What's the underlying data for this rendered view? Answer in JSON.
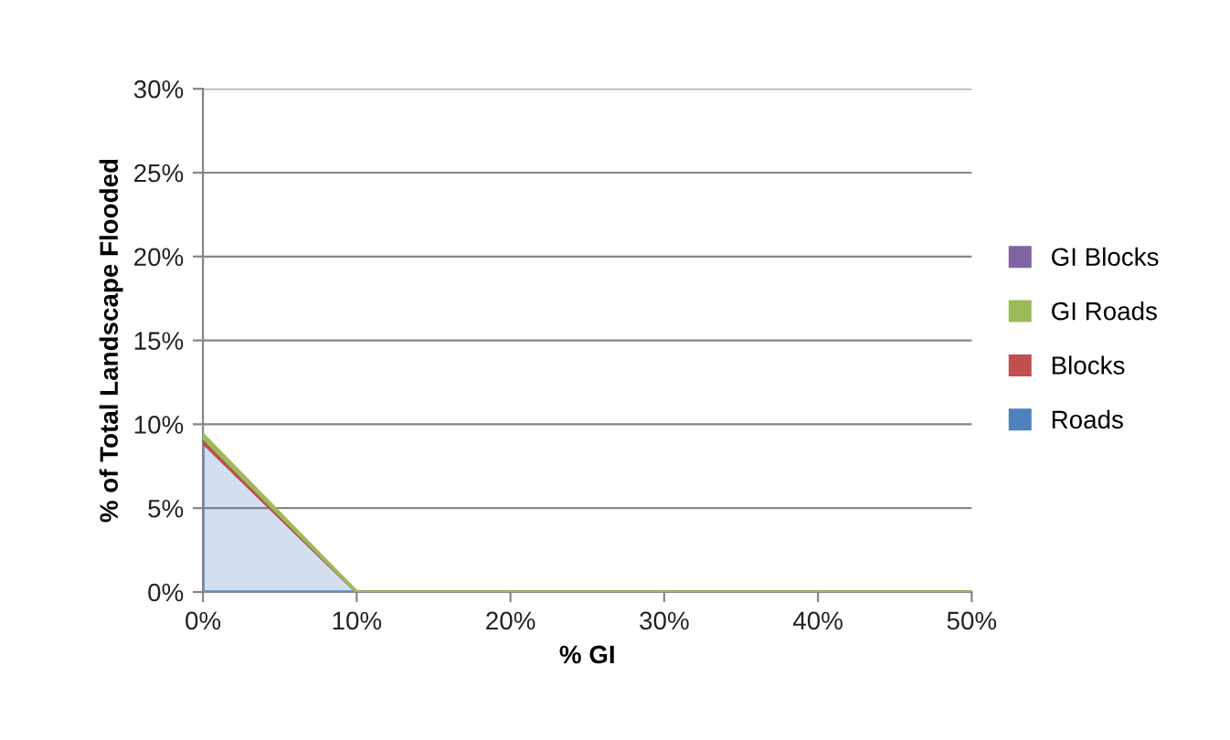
{
  "chart_data": {
    "type": "area",
    "stacked": true,
    "xlabel": "% GI",
    "ylabel": "% of Total Landscape Flooded",
    "x": [
      0,
      10,
      20,
      30,
      40,
      50
    ],
    "series": [
      {
        "name": "Roads",
        "color": "#4f81bd",
        "values": [
          8.9,
          0,
          0,
          0,
          0,
          0
        ]
      },
      {
        "name": "Blocks",
        "color": "#c0504d",
        "values": [
          0.3,
          0,
          0,
          0,
          0,
          0
        ]
      },
      {
        "name": "GI Roads",
        "color": "#9bbb59",
        "values": [
          0.2,
          0,
          0,
          0,
          0,
          0
        ]
      },
      {
        "name": "GI Blocks",
        "color": "#8064a2",
        "values": [
          null,
          null,
          null,
          null,
          null,
          null
        ]
      }
    ],
    "xlim": [
      0,
      50
    ],
    "xticks": [
      {
        "value": 0,
        "label": "0%"
      },
      {
        "value": 10,
        "label": "10%"
      },
      {
        "value": 20,
        "label": "20%"
      },
      {
        "value": 30,
        "label": "30%"
      },
      {
        "value": 40,
        "label": "40%"
      },
      {
        "value": 50,
        "label": "50%"
      }
    ],
    "ylim": [
      0,
      30
    ],
    "yticks": [
      {
        "value": 0,
        "label": "0%"
      },
      {
        "value": 5,
        "label": "5%"
      },
      {
        "value": 10,
        "label": "10%"
      },
      {
        "value": 15,
        "label": "15%"
      },
      {
        "value": 20,
        "label": "20%"
      },
      {
        "value": 25,
        "label": "25%"
      },
      {
        "value": 30,
        "label": "30%"
      }
    ],
    "grid": "y",
    "legend": "right"
  }
}
